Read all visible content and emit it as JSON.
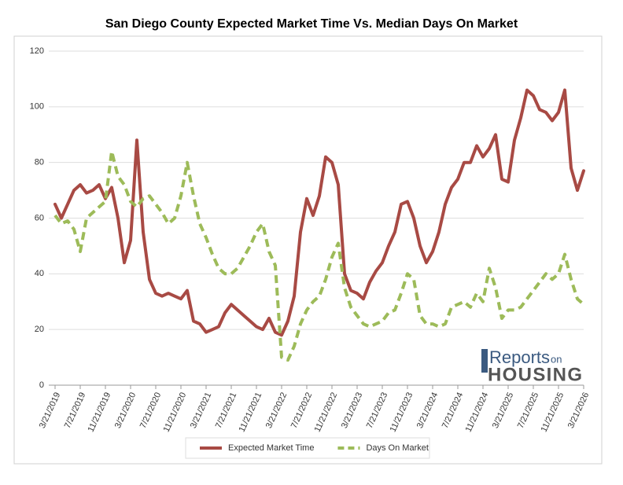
{
  "chart_data": {
    "type": "line",
    "title": "San Diego County Expected Market Time Vs. Median Days On Market",
    "categories": [
      "3/21/2019",
      null,
      null,
      null,
      "7/21/2019",
      null,
      null,
      null,
      "11/21/2019",
      null,
      null,
      null,
      "3/21/2020",
      null,
      null,
      null,
      "7/21/2020",
      null,
      null,
      null,
      "11/21/2020",
      null,
      null,
      null,
      "3/21/2021",
      null,
      null,
      null,
      "7/21/2021",
      null,
      null,
      null,
      "11/21/2021",
      null,
      null,
      null,
      "3/21/2022",
      null,
      null,
      null,
      "7/21/2022",
      null,
      null,
      null,
      "11/21/2022",
      null,
      null,
      null,
      "3/21/2023",
      null,
      null,
      null,
      "7/21/2023",
      null,
      null,
      null,
      "11/21/2023",
      null,
      null,
      null,
      "3/21/2024",
      null,
      null,
      null,
      "7/21/2024",
      null,
      null,
      null,
      "11/21/2024",
      null,
      null,
      null,
      "3/21/2025",
      null,
      null,
      null,
      "7/21/2025",
      null,
      null,
      null,
      "11/21/2025",
      null,
      null,
      null,
      "3/21/2026"
    ],
    "series": [
      {
        "name": "Expected Market Time",
        "color": "#a84a44",
        "dashed": false,
        "values": [
          65,
          60,
          65,
          70,
          72,
          69,
          70,
          72,
          67,
          71,
          60,
          44,
          52,
          88,
          55,
          38,
          33,
          32,
          33,
          32,
          31,
          34,
          23,
          22,
          19,
          20,
          21,
          26,
          29,
          27,
          25,
          23,
          21,
          20,
          24,
          19,
          18,
          23,
          32,
          55,
          67,
          61,
          68,
          82,
          80,
          72,
          40,
          34,
          33,
          31,
          37,
          41,
          44,
          50,
          55,
          65,
          66,
          60,
          50,
          44,
          48,
          55,
          65,
          71,
          74,
          80,
          80,
          86,
          82,
          85,
          90,
          74,
          73,
          88,
          96,
          106,
          104,
          99,
          98,
          95,
          98,
          106,
          78,
          70,
          77
        ]
      },
      {
        "name": "Days On Market",
        "color": "#9dbb59",
        "dashed": true,
        "values": [
          61,
          58,
          59,
          56,
          48,
          60,
          62,
          64,
          66,
          84,
          75,
          72,
          66,
          64,
          67,
          68,
          65,
          62,
          58,
          60,
          68,
          80,
          68,
          58,
          53,
          47,
          42,
          40,
          40,
          42,
          46,
          50,
          55,
          58,
          48,
          43,
          10,
          9,
          14,
          22,
          27,
          30,
          32,
          38,
          46,
          51,
          35,
          28,
          25,
          22,
          21,
          22,
          23,
          26,
          27,
          33,
          40,
          38,
          25,
          22,
          22,
          21,
          22,
          28,
          29,
          30,
          28,
          33,
          30,
          42,
          35,
          24,
          27,
          27,
          28,
          31,
          34,
          37,
          40,
          38,
          40,
          47,
          38,
          31,
          29
        ]
      }
    ],
    "ylim": [
      0,
      120
    ],
    "yticks": [
      0,
      20,
      40,
      60,
      80,
      100,
      120
    ],
    "grid": true,
    "legend": "bottom"
  },
  "logo": {
    "main": "Reports",
    "small": "on",
    "sub": "HOUSING"
  }
}
